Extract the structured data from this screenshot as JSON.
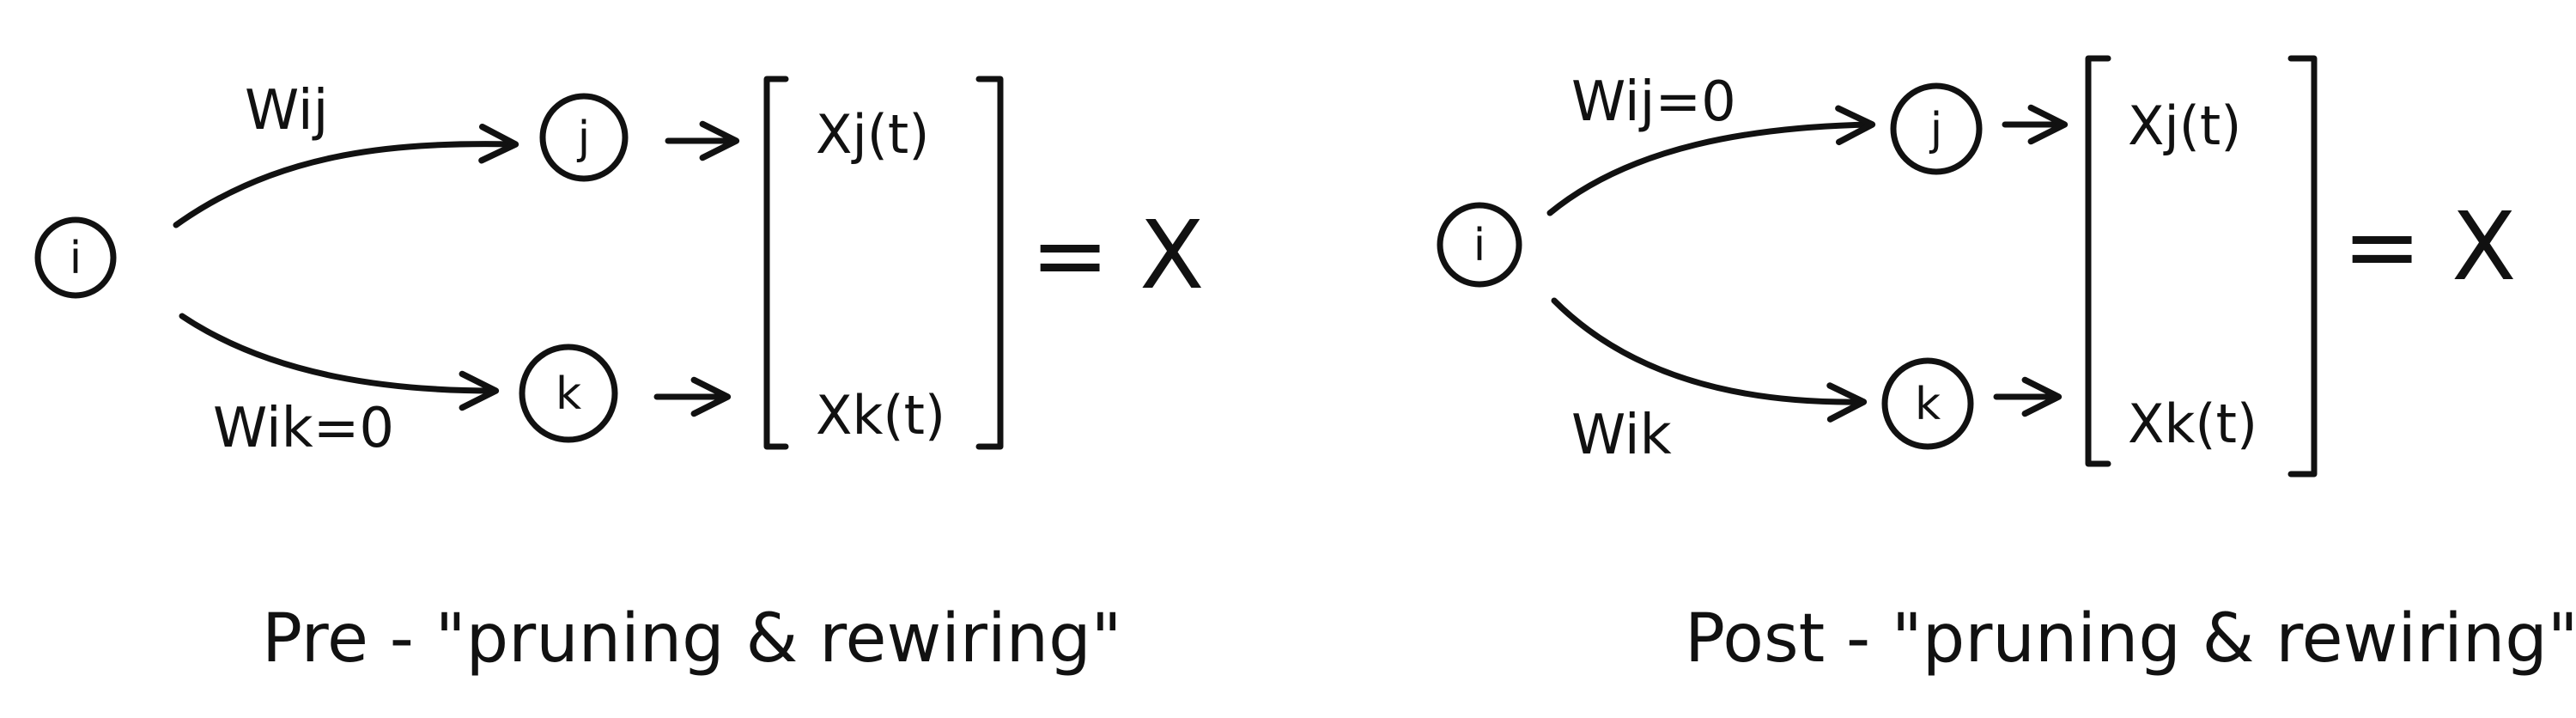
{
  "panels": [
    {
      "node_i": "i",
      "node_j": "j",
      "node_k": "k",
      "edge_ij": "Wij",
      "edge_ik": "Wik=0",
      "vector_top": "Xj(t)",
      "vector_bottom": "Xk(t)",
      "equals": "= X",
      "caption": "Pre - \"pruning & rewiring\""
    },
    {
      "node_i": "i",
      "node_j": "j",
      "node_k": "k",
      "edge_ij": "Wij=0",
      "edge_ik": "Wik",
      "vector_top": "Xj(t)",
      "vector_bottom": "Xk(t)",
      "equals": "= X",
      "caption": "Post - \"pruning & rewiring\""
    }
  ]
}
